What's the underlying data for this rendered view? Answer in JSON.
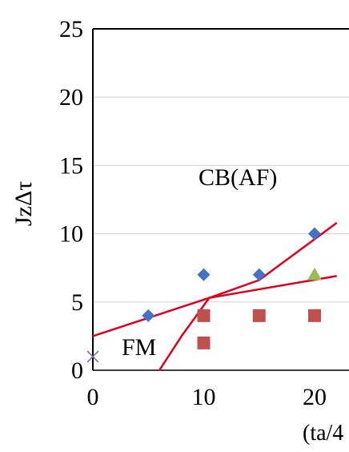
{
  "chart_data": {
    "type": "scatter",
    "title": "",
    "xlabel": "(ta/4",
    "ylabel": "JzΔτ",
    "xlim": [
      0,
      22
    ],
    "ylim": [
      0,
      25
    ],
    "x_ticks": [
      "0",
      "10",
      "20"
    ],
    "y_ticks": [
      "0",
      "5",
      "10",
      "15",
      "20",
      "25"
    ],
    "grid": "horizontal",
    "annotations": [
      "CB(AF)",
      "FM"
    ],
    "series": [
      {
        "marker": "diamond",
        "color": "#4472C4",
        "points": [
          [
            5,
            4
          ],
          [
            10,
            7
          ],
          [
            15,
            7
          ],
          [
            20,
            10
          ]
        ]
      },
      {
        "marker": "square",
        "color": "#C0504D",
        "points": [
          [
            10,
            4
          ],
          [
            10,
            2
          ],
          [
            15,
            4
          ],
          [
            20,
            4
          ]
        ]
      },
      {
        "marker": "triangle",
        "color": "#9BBB59",
        "points": [
          [
            20,
            7
          ]
        ]
      },
      {
        "marker": "x",
        "color": "#7F6A9F",
        "points": [
          [
            0,
            1
          ]
        ]
      }
    ],
    "boundary_lines": [
      {
        "color": "#E0001B",
        "points": [
          [
            0,
            2.5
          ],
          [
            10.5,
            5.3
          ],
          [
            22,
            6.9
          ]
        ]
      },
      {
        "color": "#E0001B",
        "points": [
          [
            6,
            0
          ],
          [
            8,
            2.5
          ],
          [
            10.5,
            5.3
          ],
          [
            15,
            6.6
          ],
          [
            22,
            10.8
          ]
        ]
      }
    ]
  }
}
